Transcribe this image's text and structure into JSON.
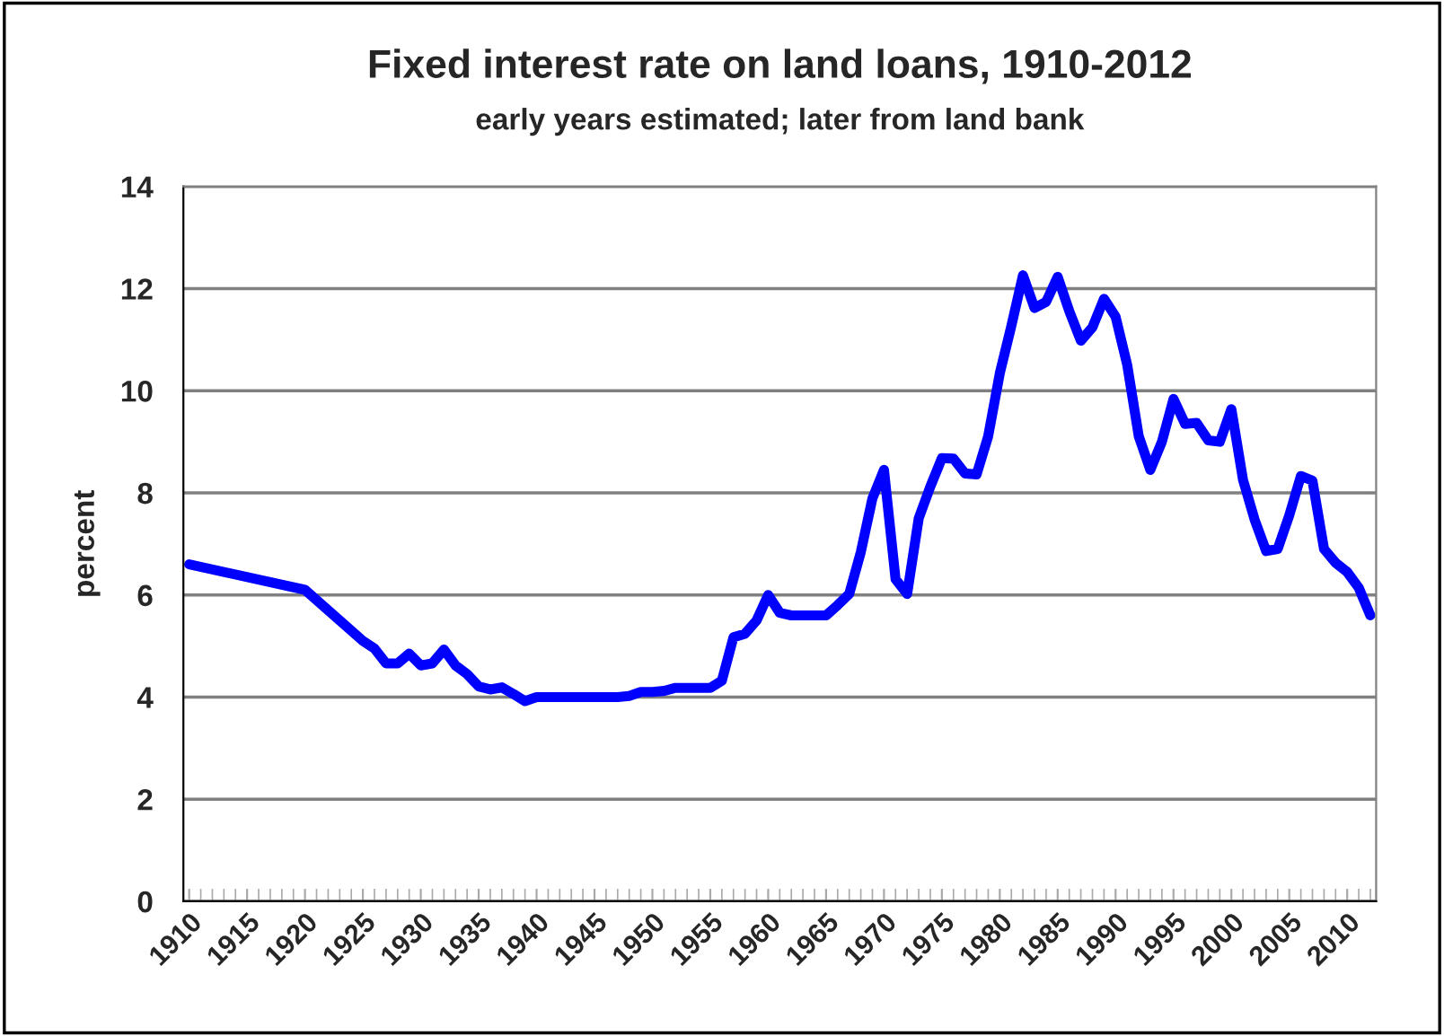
{
  "chart_data": {
    "type": "line",
    "title": "Fixed interest rate on land loans, 1910-2012",
    "subtitle": "early years estimated; later from land bank",
    "ylabel": "percent",
    "x": [
      1910,
      1920,
      1925,
      1926,
      1927,
      1928,
      1929,
      1930,
      1931,
      1932,
      1933,
      1934,
      1935,
      1936,
      1937,
      1938,
      1939,
      1940,
      1941,
      1942,
      1943,
      1944,
      1945,
      1946,
      1947,
      1948,
      1949,
      1950,
      1951,
      1952,
      1953,
      1954,
      1955,
      1956,
      1957,
      1958,
      1959,
      1960,
      1961,
      1962,
      1963,
      1964,
      1965,
      1966,
      1967,
      1968,
      1969,
      1970,
      1971,
      1972,
      1973,
      1974,
      1975,
      1976,
      1977,
      1978,
      1979,
      1980,
      1981,
      1982,
      1983,
      1984,
      1985,
      1986,
      1987,
      1988,
      1989,
      1990,
      1991,
      1992,
      1993,
      1994,
      1995,
      1996,
      1997,
      1998,
      1999,
      2000,
      2001,
      2002,
      2003,
      2004,
      2005,
      2006,
      2007,
      2008,
      2009,
      2010,
      2011,
      2012
    ],
    "series": [
      {
        "color": "#0000ff",
        "values": [
          6.6,
          6.1,
          5.1,
          4.95,
          4.66,
          4.66,
          4.85,
          4.62,
          4.66,
          4.93,
          4.62,
          4.45,
          4.21,
          4.15,
          4.19,
          4.06,
          3.92,
          4.0,
          4.0,
          4.0,
          4.0,
          4.0,
          4.0,
          4.0,
          4.0,
          4.02,
          4.1,
          4.1,
          4.12,
          4.18,
          4.18,
          4.18,
          4.18,
          4.32,
          5.17,
          5.24,
          5.5,
          6.0,
          5.65,
          5.6,
          5.6,
          5.6,
          5.6,
          5.8,
          6.02,
          6.84,
          7.89,
          8.45,
          6.31,
          6.02,
          7.5,
          8.12,
          8.68,
          8.67,
          8.38,
          8.36,
          9.11,
          10.34,
          11.27,
          12.26,
          11.62,
          11.74,
          12.23,
          11.56,
          10.98,
          11.24,
          11.8,
          11.45,
          10.51,
          9.11,
          8.45,
          9.0,
          9.84,
          9.35,
          9.37,
          9.03,
          9.0,
          9.64,
          8.26,
          7.48,
          6.86,
          6.9,
          7.56,
          8.33,
          8.24,
          6.9,
          6.63,
          6.45,
          6.14,
          5.6
        ]
      }
    ],
    "xlim": [
      1909.5,
      2012.5
    ],
    "xticks": [
      1910,
      1915,
      1920,
      1925,
      1930,
      1935,
      1940,
      1945,
      1950,
      1955,
      1960,
      1965,
      1970,
      1975,
      1980,
      1985,
      1990,
      1995,
      2000,
      2005,
      2010
    ],
    "ylim": [
      0,
      14
    ],
    "yticks": [
      0,
      2,
      4,
      6,
      8,
      10,
      12,
      14
    ],
    "grid": "y",
    "legend": false,
    "marker": "none",
    "line_style": "solid"
  }
}
